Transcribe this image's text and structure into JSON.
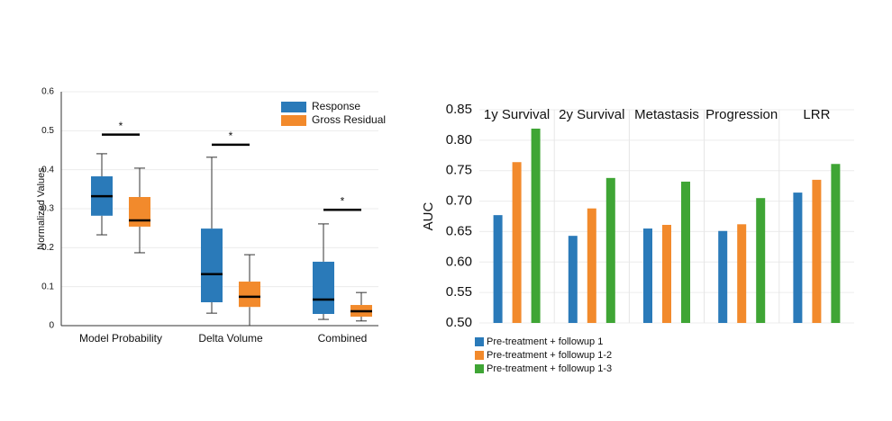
{
  "chart_data": [
    {
      "type": "box",
      "ylabel": "Normalized Values",
      "categories": [
        "Model Probability",
        "Delta Volume",
        "Combined"
      ],
      "ylim": [
        0,
        0.6
      ],
      "yticks": [
        0,
        0.1,
        0.2,
        0.3,
        0.4,
        0.5,
        0.6
      ],
      "grid": true,
      "legend": "upper right",
      "series": [
        {
          "name": "Response",
          "color": "#2a7ab9",
          "low": [
            0.233,
            0.032,
            0.016
          ],
          "q1": [
            0.282,
            0.06,
            0.03
          ],
          "median": [
            0.332,
            0.132,
            0.067
          ],
          "q3": [
            0.383,
            0.249,
            0.164
          ],
          "high": [
            0.441,
            0.432,
            0.261
          ]
        },
        {
          "name": "Gross Residual",
          "color": "#f28a2c",
          "low": [
            0.187,
            0,
            0.012
          ],
          "q1": [
            0.254,
            0.048,
            0.023
          ],
          "median": [
            0.27,
            0.074,
            0.037
          ],
          "q3": [
            0.33,
            0.113,
            0.053
          ],
          "high": [
            0.404,
            0.182,
            0.085
          ]
        }
      ],
      "annotations": [
        {
          "text": "*",
          "y": 0.49
        },
        {
          "text": "*",
          "y": 0.464
        },
        {
          "text": "*",
          "y": 0.297
        }
      ]
    },
    {
      "type": "bar",
      "ylabel": "AUC",
      "categories": [
        "1y Survival",
        "2y Survival",
        "Metastasis",
        "Progression",
        "LRR"
      ],
      "ylim": [
        0.5,
        0.85
      ],
      "yticks": [
        {
          "value": 0.5,
          "label": "0.50"
        },
        0.55,
        {
          "value": 0.6,
          "label": "0.60"
        },
        0.65,
        {
          "value": 0.7,
          "label": "0.70"
        },
        0.75,
        {
          "value": 0.8,
          "label": "0.80"
        },
        0.85
      ],
      "grid": true,
      "legend": "below left",
      "series": [
        {
          "name": "Pre-treatment + followup 1",
          "color": "#2a7ab9",
          "values": [
            0.677,
            0.643,
            0.655,
            0.651,
            0.714
          ]
        },
        {
          "name": "Pre-treatment + followup 1-2",
          "color": "#f28a2c",
          "values": [
            0.764,
            0.688,
            0.661,
            0.662,
            0.735
          ]
        },
        {
          "name": "Pre-treatment + followup 1-3",
          "color": "#3fa535",
          "values": [
            0.819,
            0.738,
            0.732,
            0.705,
            0.761
          ]
        }
      ]
    }
  ]
}
